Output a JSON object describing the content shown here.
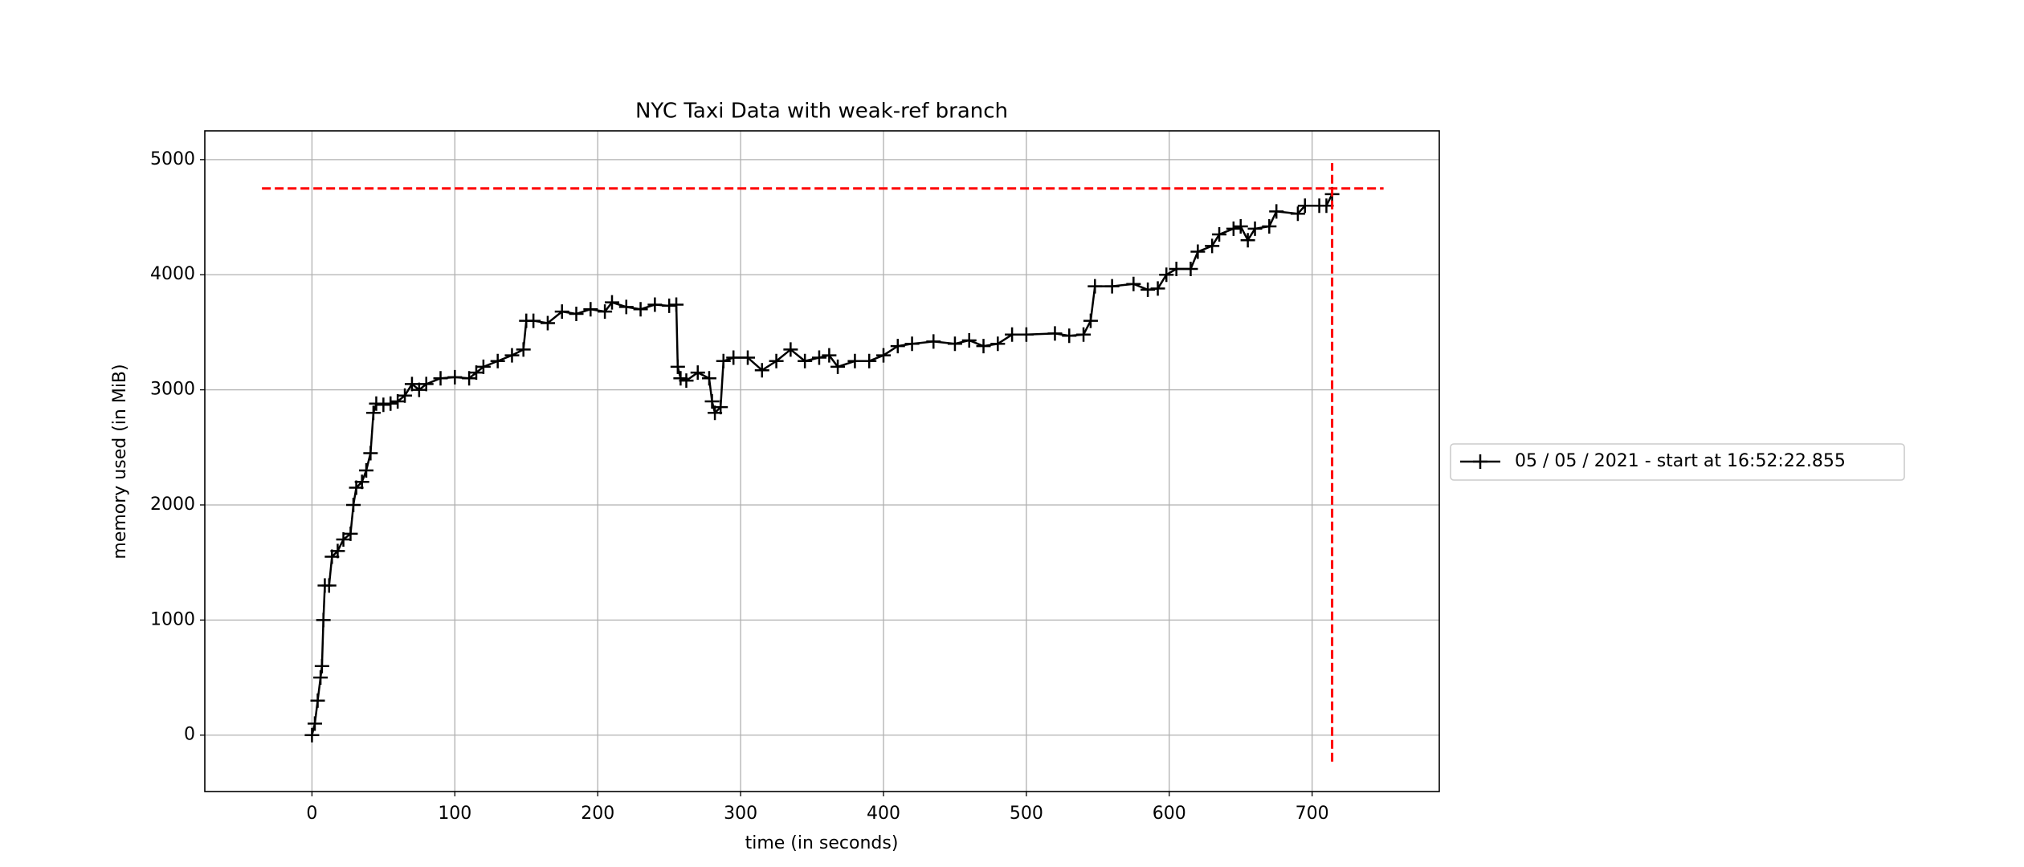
{
  "chart_data": {
    "type": "line",
    "title": "NYC Taxi Data with weak-ref branch",
    "xlabel": "time (in seconds)",
    "ylabel": "memory used (in MiB)",
    "x": [
      0,
      2,
      4,
      6,
      7,
      8,
      9,
      12,
      14,
      18,
      22,
      27,
      29,
      31,
      35,
      38,
      41,
      43,
      45,
      50,
      55,
      60,
      65,
      70,
      75,
      80,
      90,
      100,
      110,
      115,
      120,
      130,
      140,
      148,
      150,
      155,
      165,
      175,
      185,
      195,
      205,
      210,
      220,
      230,
      240,
      250,
      255,
      256,
      258,
      262,
      270,
      278,
      280,
      282,
      286,
      288,
      295,
      305,
      315,
      325,
      335,
      345,
      355,
      362,
      368,
      380,
      390,
      400,
      410,
      420,
      435,
      450,
      460,
      470,
      480,
      490,
      500,
      520,
      530,
      540,
      545,
      548,
      560,
      575,
      585,
      592,
      598,
      605,
      615,
      620,
      630,
      635,
      645,
      650,
      655,
      660,
      670,
      675,
      690,
      695,
      705,
      710,
      714
    ],
    "series": [
      {
        "name": "05 / 05 / 2021 - start at 16:52:22.855",
        "color": "#000000",
        "values": [
          0,
          100,
          300,
          500,
          600,
          1000,
          1300,
          1300,
          1550,
          1600,
          1700,
          1750,
          2000,
          2150,
          2200,
          2300,
          2450,
          2800,
          2880,
          2870,
          2880,
          2900,
          2950,
          3050,
          3000,
          3050,
          3100,
          3110,
          3100,
          3150,
          3200,
          3250,
          3300,
          3350,
          3600,
          3600,
          3580,
          3680,
          3660,
          3700,
          3680,
          3760,
          3720,
          3700,
          3740,
          3730,
          3740,
          3200,
          3100,
          3080,
          3150,
          3100,
          2900,
          2800,
          2850,
          3250,
          3280,
          3280,
          3170,
          3250,
          3350,
          3250,
          3280,
          3300,
          3200,
          3250,
          3250,
          3300,
          3380,
          3400,
          3420,
          3400,
          3430,
          3380,
          3400,
          3480,
          3480,
          3490,
          3470,
          3480,
          3600,
          3900,
          3900,
          3920,
          3870,
          3880,
          4000,
          4050,
          4050,
          4200,
          4250,
          4350,
          4400,
          4420,
          4300,
          4400,
          4420,
          4550,
          4530,
          4600,
          4600,
          4600,
          4700
        ]
      }
    ],
    "peak_hline": {
      "y": 4750,
      "xmin": -35,
      "xmax": 750,
      "color": "#ff0000"
    },
    "peak_vline": {
      "x": 714,
      "ymin": -230,
      "ymax": 4970,
      "color": "#ff0000"
    },
    "xlim": [
      -75,
      789
    ],
    "ylim": [
      -490,
      5250
    ],
    "xticks": [
      0,
      100,
      200,
      300,
      400,
      500,
      600,
      700
    ],
    "yticks": [
      0,
      1000,
      2000,
      3000,
      4000,
      5000
    ],
    "grid": true,
    "legend": "outside right"
  }
}
